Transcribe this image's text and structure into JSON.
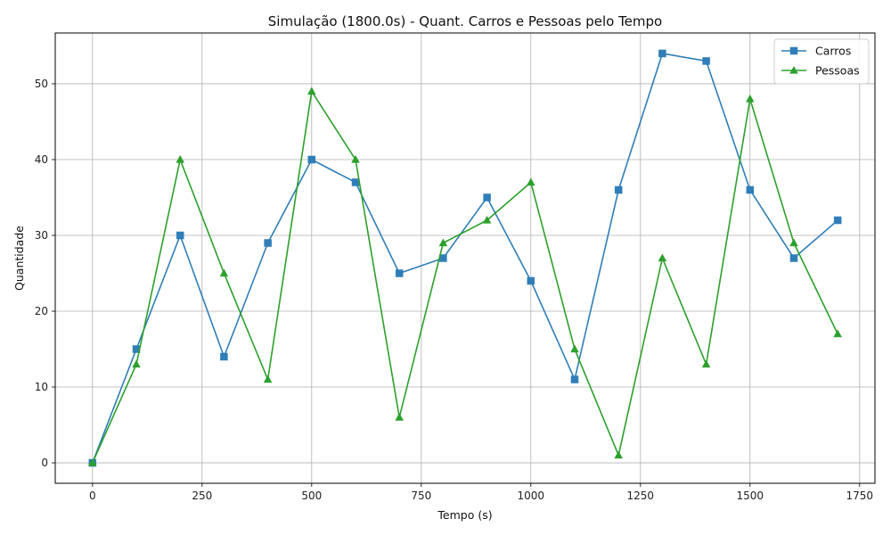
{
  "chart_data": {
    "type": "line",
    "title": "Simulação (1800.0s) - Quant. Carros e Pessoas pelo Tempo",
    "xlabel": "Tempo (s)",
    "ylabel": "Quantidade",
    "xlim": [
      -85,
      1785
    ],
    "ylim": [
      -2.7,
      56.7
    ],
    "x_ticks": [
      0,
      250,
      500,
      750,
      1000,
      1250,
      1500,
      1750
    ],
    "y_ticks": [
      0,
      10,
      20,
      30,
      40,
      50
    ],
    "grid": true,
    "legend_position": "top-right",
    "x": [
      0,
      100,
      200,
      300,
      400,
      500,
      600,
      700,
      800,
      900,
      1000,
      1100,
      1200,
      1300,
      1400,
      1500,
      1600,
      1700
    ],
    "series": [
      {
        "name": "Carros",
        "color": "#2f7eb8",
        "marker": "square",
        "values": [
          0,
          15,
          30,
          14,
          29,
          40,
          37,
          25,
          27,
          35,
          24,
          11,
          36,
          54,
          53,
          36,
          27,
          32
        ]
      },
      {
        "name": "Pessoas",
        "color": "#2ca02c",
        "marker": "triangle",
        "values": [
          0,
          13,
          40,
          25,
          11,
          49,
          40,
          6,
          29,
          32,
          37,
          15,
          1,
          27,
          13,
          48,
          29,
          17
        ]
      }
    ]
  }
}
